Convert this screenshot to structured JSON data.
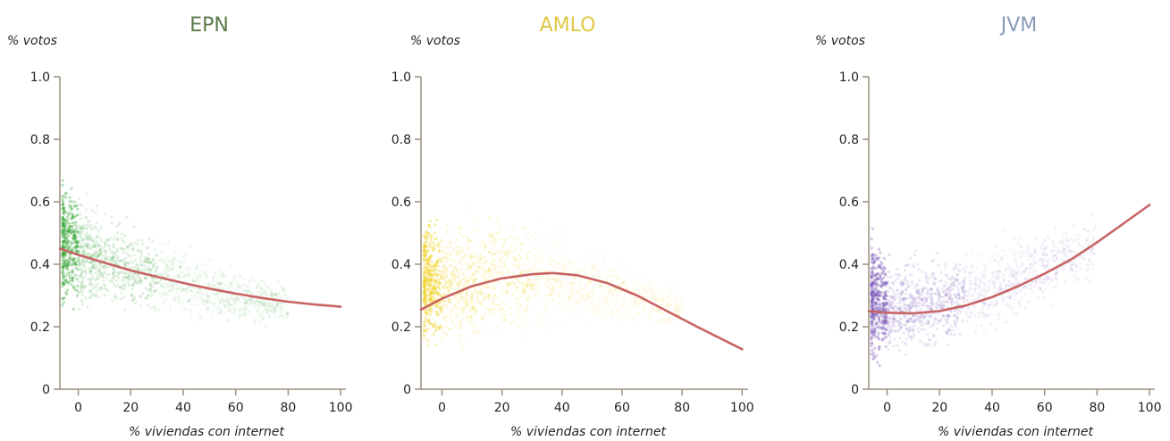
{
  "chart_data": [
    {
      "type": "scatter",
      "title": "EPN",
      "title_color": "#5a7a4a",
      "point_color": "#3aa63a",
      "curve_color": "#c86464",
      "xlabel": "% viviendas con internet",
      "ylabel": "% votos",
      "xlim": [
        -7,
        102
      ],
      "ylim": [
        0,
        1.0
      ],
      "xticks": [
        0,
        20,
        40,
        60,
        80,
        100
      ],
      "xtick_labels": [
        "0",
        "20",
        "40",
        "60",
        "80",
        "100"
      ],
      "yticks": [
        0,
        0.2,
        0.4,
        0.6,
        0.8,
        1.0
      ],
      "ytick_labels": [
        "0",
        "0.2",
        "0.4",
        "0.6",
        "0.8",
        "1.0"
      ],
      "fit_curve": {
        "x": [
          -7,
          0,
          10,
          20,
          30,
          40,
          50,
          60,
          70,
          80,
          90,
          100
        ],
        "y": [
          0.45,
          0.43,
          0.405,
          0.38,
          0.36,
          0.34,
          0.322,
          0.306,
          0.292,
          0.28,
          0.271,
          0.264
        ]
      },
      "point_cloud": [
        {
          "x": -6,
          "y_low": 0.18,
          "y_high": 0.75
        },
        {
          "x": 0,
          "y_low": 0.2,
          "y_high": 0.68
        },
        {
          "x": 10,
          "y_low": 0.2,
          "y_high": 0.62
        },
        {
          "x": 20,
          "y_low": 0.19,
          "y_high": 0.58
        },
        {
          "x": 30,
          "y_low": 0.19,
          "y_high": 0.54
        },
        {
          "x": 40,
          "y_low": 0.18,
          "y_high": 0.5
        },
        {
          "x": 50,
          "y_low": 0.18,
          "y_high": 0.46
        },
        {
          "x": 60,
          "y_low": 0.17,
          "y_high": 0.43
        },
        {
          "x": 70,
          "y_low": 0.17,
          "y_high": 0.4
        },
        {
          "x": 80,
          "y_low": 0.17,
          "y_high": 0.37
        }
      ]
    },
    {
      "type": "scatter",
      "title": "AMLO",
      "title_color": "#e0c845",
      "point_color": "#f2d21e",
      "curve_color": "#c86464",
      "xlabel": "% viviendas con internet",
      "ylabel": "% votos",
      "xlim": [
        -7,
        102
      ],
      "ylim": [
        0,
        1.0
      ],
      "xticks": [
        0,
        20,
        40,
        60,
        80,
        100
      ],
      "xtick_labels": [
        "0",
        "20",
        "40",
        "60",
        "80",
        "100"
      ],
      "yticks": [
        0,
        0.2,
        0.4,
        0.6,
        0.8,
        1.0
      ],
      "ytick_labels": [
        "0",
        "0.2",
        "0.4",
        "0.6",
        "0.8",
        "1.0"
      ],
      "fit_curve": {
        "x": [
          -7,
          0,
          10,
          20,
          30,
          37,
          45,
          55,
          65,
          75,
          85,
          100
        ],
        "y": [
          0.255,
          0.29,
          0.33,
          0.355,
          0.368,
          0.372,
          0.365,
          0.34,
          0.3,
          0.25,
          0.2,
          0.128
        ]
      },
      "point_cloud": [
        {
          "x": -6,
          "y_low": 0.03,
          "y_high": 0.68
        },
        {
          "x": 0,
          "y_low": 0.05,
          "y_high": 0.6
        },
        {
          "x": 10,
          "y_low": 0.08,
          "y_high": 0.62
        },
        {
          "x": 20,
          "y_low": 0.1,
          "y_high": 0.63
        },
        {
          "x": 30,
          "y_low": 0.12,
          "y_high": 0.6
        },
        {
          "x": 40,
          "y_low": 0.14,
          "y_high": 0.55
        },
        {
          "x": 50,
          "y_low": 0.15,
          "y_high": 0.5
        },
        {
          "x": 60,
          "y_low": 0.16,
          "y_high": 0.45
        },
        {
          "x": 70,
          "y_low": 0.16,
          "y_high": 0.4
        },
        {
          "x": 80,
          "y_low": 0.16,
          "y_high": 0.35
        }
      ]
    },
    {
      "type": "scatter",
      "title": "JVM",
      "title_color": "#8a9ab8",
      "point_color": "#7a58b8",
      "curve_color": "#c86464",
      "xlabel": "% viviendas con internet",
      "ylabel": "% votos",
      "xlim": [
        -7,
        102
      ],
      "ylim": [
        0,
        1.0
      ],
      "xticks": [
        0,
        20,
        40,
        60,
        80,
        100
      ],
      "xtick_labels": [
        "0",
        "20",
        "40",
        "60",
        "80",
        "100"
      ],
      "yticks": [
        0,
        0.2,
        0.4,
        0.6,
        0.8,
        1.0
      ],
      "ytick_labels": [
        "0",
        "0.2",
        "0.4",
        "0.6",
        "0.8",
        "1.0"
      ],
      "fit_curve": {
        "x": [
          -7,
          0,
          10,
          20,
          30,
          40,
          50,
          60,
          70,
          80,
          90,
          100
        ],
        "y": [
          0.25,
          0.245,
          0.243,
          0.25,
          0.268,
          0.295,
          0.33,
          0.37,
          0.415,
          0.47,
          0.53,
          0.59
        ]
      },
      "point_cloud": [
        {
          "x": -6,
          "y_low": 0.02,
          "y_high": 0.56
        },
        {
          "x": 0,
          "y_low": 0.03,
          "y_high": 0.5
        },
        {
          "x": 10,
          "y_low": 0.06,
          "y_high": 0.48
        },
        {
          "x": 20,
          "y_low": 0.08,
          "y_high": 0.48
        },
        {
          "x": 30,
          "y_low": 0.1,
          "y_high": 0.5
        },
        {
          "x": 40,
          "y_low": 0.13,
          "y_high": 0.52
        },
        {
          "x": 50,
          "y_low": 0.16,
          "y_high": 0.55
        },
        {
          "x": 60,
          "y_low": 0.2,
          "y_high": 0.58
        },
        {
          "x": 70,
          "y_low": 0.24,
          "y_high": 0.6
        },
        {
          "x": 80,
          "y_low": 0.28,
          "y_high": 0.62
        }
      ]
    }
  ]
}
